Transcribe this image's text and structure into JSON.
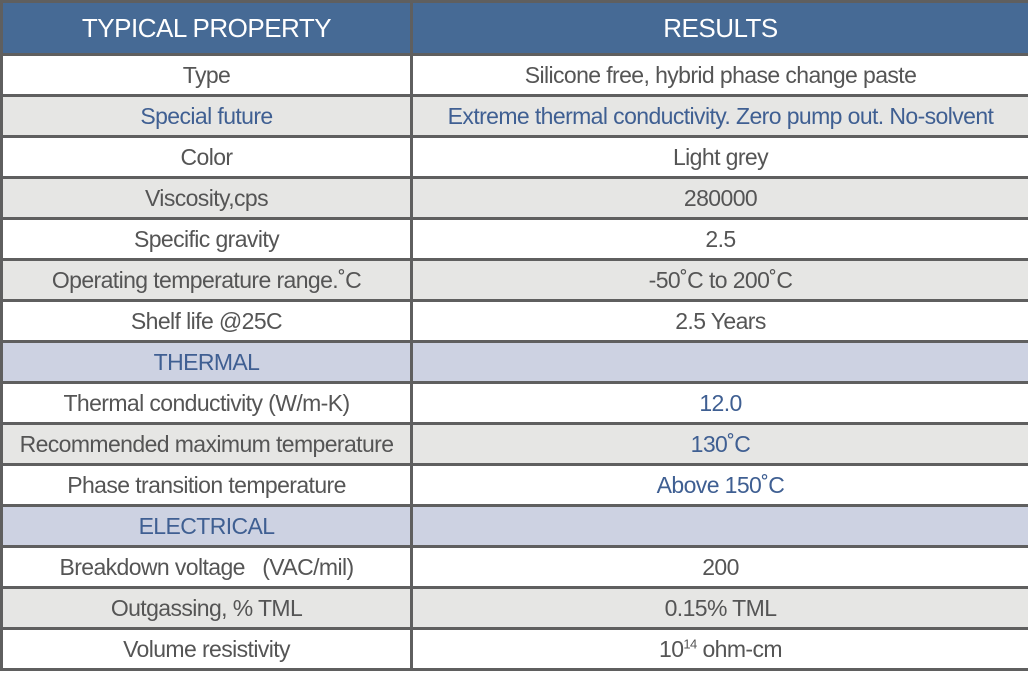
{
  "table": {
    "headers": [
      "TYPICAL PROPERTY",
      "RESULTS"
    ],
    "rows": [
      {
        "property": "Type",
        "result": "Silicone free, hybrid phase change paste",
        "style": "white"
      },
      {
        "property": "Special future",
        "result": "Extreme thermal conductivity. Zero pump out.  No-solvent",
        "style": "grey",
        "blue": true
      },
      {
        "property": "Color",
        "result": "Light grey",
        "style": "white"
      },
      {
        "property": "Viscosity,cps",
        "result": "280000",
        "style": "grey"
      },
      {
        "property": "Specific gravity",
        "result": "2.5",
        "style": "white"
      },
      {
        "property": "Operating temperature range.˚C",
        "result": "-50˚C  to 200˚C",
        "style": "grey"
      },
      {
        "property": "Shelf life @25C",
        "result": "2.5 Years",
        "style": "white"
      },
      {
        "property": "THERMAL",
        "result": "",
        "style": "section"
      },
      {
        "property": "Thermal conductivity (W/m-K)",
        "result": "12.0",
        "style": "white",
        "blue_result": true
      },
      {
        "property": "Recommended maximum temperature",
        "result": "130˚C",
        "style": "grey",
        "blue_result": true
      },
      {
        "property": "Phase transition temperature",
        "result": "Above 150˚C",
        "style": "white",
        "blue_result": true
      },
      {
        "property": "ELECTRICAL",
        "result": "",
        "style": "section"
      },
      {
        "property": "Breakdown voltage   (VAC/mil)",
        "result": "200",
        "style": "white"
      },
      {
        "property": "Outgassing, % TML",
        "result": "0.15% TML",
        "style": "grey"
      },
      {
        "property": "Volume resistivity",
        "result_base": "10",
        "result_exp": "14",
        "result_unit": " ohm-cm",
        "style": "white"
      }
    ]
  },
  "colors": {
    "header_bg": "#466a95",
    "section_bg": "#cdd2e2",
    "accent_text": "#3f5f92",
    "alt_row": "#e6e6e4"
  }
}
